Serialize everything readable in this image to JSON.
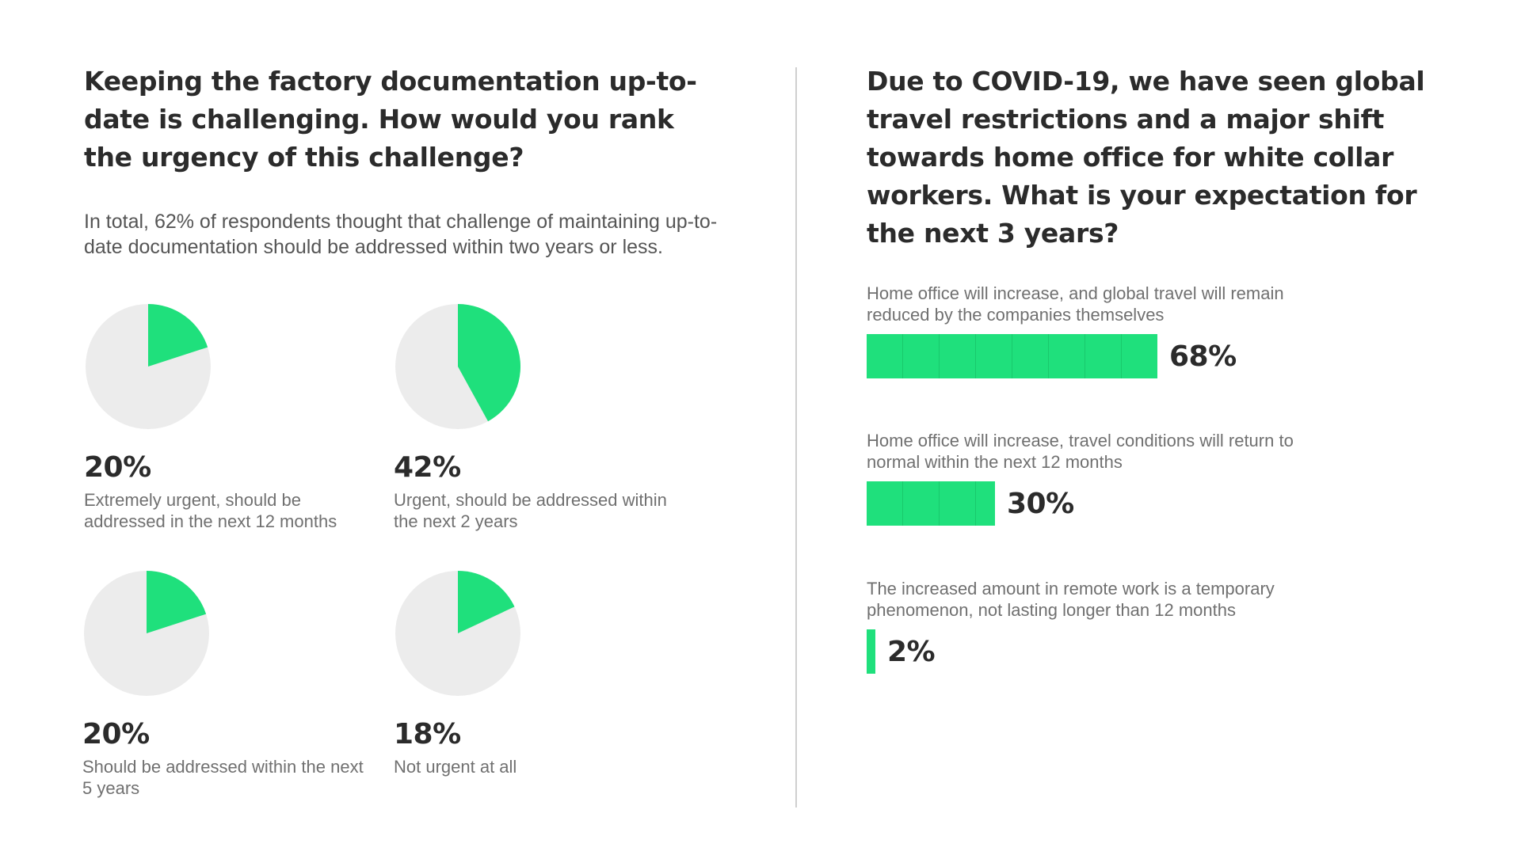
{
  "left": {
    "heading": "Keeping the factory documentation up-to-date is challenging. How would you rank the urgency of this challenge?",
    "summary": "In total, 62% of respondents thought that challenge of maintaining up-to-date documentation should be addressed within two years or less."
  },
  "right": {
    "heading": "Due to COVID-19, we have seen global travel restrictions and a major shift towards home office for white collar workers. What is your expectation for the next 3 years?"
  },
  "colors": {
    "accent": "#1fe07c",
    "pie_background": "#ececec",
    "divider": "#cfcfcf"
  },
  "chart_data": [
    {
      "type": "pie",
      "slices": [
        {
          "percent_label": "20%",
          "value": 20,
          "label": "Extremely urgent, should be addressed in the next 12 months"
        },
        {
          "percent_label": "42%",
          "value": 42,
          "label": "Urgent, should be addressed within the next 2 years"
        },
        {
          "percent_label": "20%",
          "value": 20,
          "label": "Should be addressed within the next 5 years"
        },
        {
          "percent_label": "18%",
          "value": 18,
          "label": "Not urgent at all"
        }
      ]
    },
    {
      "type": "bar",
      "orientation": "horizontal",
      "xlim": [
        0,
        100
      ],
      "bars": [
        {
          "label": "Home office will increase, and global travel will remain reduced by the companies themselves",
          "value": 68,
          "percent_label": "68%"
        },
        {
          "label": "Home office will increase, travel conditions will return to normal within the next 12 months",
          "value": 30,
          "percent_label": "30%"
        },
        {
          "label": "The increased amount in remote work is a temporary phenomenon, not lasting longer than 12 months",
          "value": 2,
          "percent_label": "2%"
        }
      ]
    }
  ]
}
